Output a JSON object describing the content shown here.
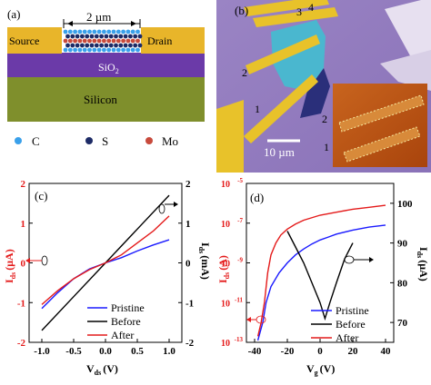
{
  "panel_a": {
    "tag": "(a)",
    "scale_label": "2 µm",
    "source_label": "Source",
    "drain_label": "Drain",
    "oxide_label": "SiO",
    "oxide_sub": "2",
    "substrate_label": "Silicon",
    "legend": [
      {
        "symbol": "C",
        "color": "#3aa0ea"
      },
      {
        "symbol": "S",
        "color": "#1d2b66"
      },
      {
        "symbol": "Mo",
        "color": "#c84a3c"
      }
    ]
  },
  "panel_b": {
    "tag": "(b)",
    "electrode_labels": [
      "1",
      "2",
      "3",
      "4"
    ],
    "inset_labels": [
      "1",
      "2"
    ],
    "scale_label": "10 µm"
  },
  "chart_data": [
    {
      "type": "line",
      "panel": "(c)",
      "xlabel": "V",
      "xlabel_sub": "ds",
      "xlabel_unit": "(V)",
      "ylabel_left": "I",
      "ylabel_left_sub": "ds",
      "ylabel_left_unit": "(μA)",
      "ylabel_right": "I",
      "ylabel_right_sub": "ds",
      "ylabel_right_unit": "(mA)",
      "xlim": [
        -1.2,
        1.2
      ],
      "ylim_left": [
        -2,
        2
      ],
      "ylim_right": [
        -2,
        2
      ],
      "xticks": [
        "-1.0",
        "-0.5",
        "0.0",
        "0.5",
        "1.0"
      ],
      "yticks_left": [
        "-2",
        "-1",
        "0",
        "1",
        "2"
      ],
      "yticks_right": [
        "-2",
        "-1",
        "0",
        "1",
        "2"
      ],
      "series": [
        {
          "name": "Pristine",
          "color": "#1a1aff",
          "axis": "left",
          "x": [
            -1.0,
            -0.75,
            -0.5,
            -0.25,
            0.0,
            0.25,
            0.5,
            0.75,
            1.0
          ],
          "y": [
            -1.15,
            -0.75,
            -0.4,
            -0.15,
            0.0,
            0.13,
            0.3,
            0.45,
            0.58
          ]
        },
        {
          "name": "Before",
          "color": "#000000",
          "axis": "right",
          "x": [
            -1.0,
            -0.5,
            0.0,
            0.5,
            1.0
          ],
          "y": [
            -1.7,
            -0.85,
            0.0,
            0.85,
            1.7
          ]
        },
        {
          "name": "After",
          "color": "#e41a1a",
          "axis": "left",
          "x": [
            -1.0,
            -0.75,
            -0.5,
            -0.25,
            0.0,
            0.25,
            0.5,
            0.75,
            1.0
          ],
          "y": [
            -1.05,
            -0.7,
            -0.4,
            -0.17,
            0.0,
            0.2,
            0.5,
            0.8,
            1.18
          ]
        }
      ],
      "legend_position": "bottom-right"
    },
    {
      "type": "line",
      "panel": "(d)",
      "xlabel": "V",
      "xlabel_sub": "g",
      "xlabel_unit": "(V)",
      "ylabel_left": "I",
      "ylabel_left_sub": "ds",
      "ylabel_left_unit": "(A)",
      "ylabel_right": "I",
      "ylabel_right_sub": "ds",
      "ylabel_right_unit": "(μA)",
      "xlim": [
        -45,
        45
      ],
      "ylim_left_log10": [
        -13,
        -5
      ],
      "ylim_right": [
        65,
        105
      ],
      "xticks": [
        "-40",
        "-20",
        "0",
        "20",
        "40"
      ],
      "yticks_left": [
        {
          "base": "10",
          "exp": "-5"
        },
        {
          "base": "10",
          "exp": "-7"
        },
        {
          "base": "10",
          "exp": "-9"
        },
        {
          "base": "10",
          "exp": "-11"
        },
        {
          "base": "10",
          "exp": "-13"
        }
      ],
      "yticks_right": [
        "100",
        "90",
        "80",
        "70"
      ],
      "series": [
        {
          "name": "Pristine",
          "color": "#1a1aff",
          "axis": "left",
          "log": true,
          "x": [
            -38,
            -35,
            -33,
            -30,
            -25,
            -20,
            -15,
            -10,
            -5,
            0,
            5,
            10,
            20,
            30,
            40
          ],
          "y": [
            -12.9,
            -12.0,
            -11.0,
            -10.2,
            -9.5,
            -9.0,
            -8.6,
            -8.3,
            -8.05,
            -7.85,
            -7.7,
            -7.55,
            -7.35,
            -7.2,
            -7.1
          ]
        },
        {
          "name": "Before",
          "color": "#000000",
          "axis": "right",
          "x": [
            -20,
            -15,
            -10,
            -5,
            0,
            3,
            6,
            10,
            15,
            20
          ],
          "y": [
            93,
            89,
            85,
            80,
            75,
            71,
            75,
            80,
            86,
            90
          ]
        },
        {
          "name": "After",
          "color": "#e41a1a",
          "axis": "left",
          "log": true,
          "x": [
            -38,
            -36,
            -34,
            -32,
            -30,
            -27,
            -24,
            -20,
            -15,
            -10,
            0,
            10,
            20,
            30,
            40
          ],
          "y": [
            -12.7,
            -12.0,
            -11.0,
            -9.5,
            -8.6,
            -8.0,
            -7.6,
            -7.3,
            -7.05,
            -6.85,
            -6.6,
            -6.45,
            -6.3,
            -6.2,
            -6.1
          ]
        }
      ],
      "legend_position": "bottom-right"
    }
  ]
}
